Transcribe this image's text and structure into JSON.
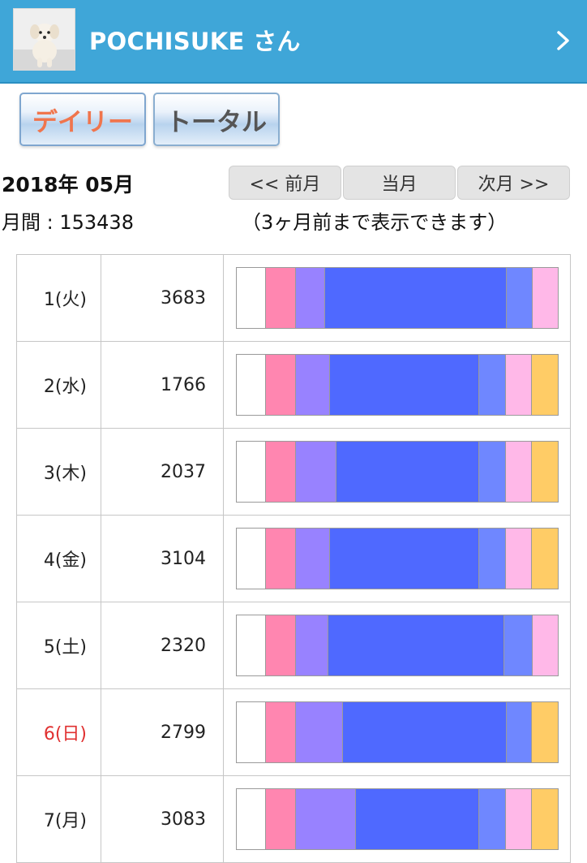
{
  "header": {
    "title": "POCHISUKE さん",
    "avatar_alt": "puppy-photo"
  },
  "tabs": {
    "daily": "デイリー",
    "total": "トータル",
    "active": "daily"
  },
  "summary": {
    "month": "2018年 05月",
    "monthly_total": "月間 : 153438"
  },
  "nav": {
    "prev": "<< 前月",
    "current": "当月",
    "next": "次月 >>",
    "note": "（3ヶ月前まで表示できます）"
  },
  "colors": {
    "header": "#3fa6d8",
    "white": "#ffffff",
    "pink": "#ff86b0",
    "lavender": "#9882ff",
    "blue": "#4f69ff",
    "periwinkle": "#6f87ff",
    "light_pink": "#ffb8e8",
    "yellow": "#ffcc66",
    "sunday_text": "#e03030"
  },
  "days": [
    {
      "date": "1(火)",
      "count": "3683",
      "sunday": false,
      "segments": [
        [
          "white",
          0.092
        ],
        [
          "pink",
          0.092
        ],
        [
          "lavender",
          0.092
        ],
        [
          "blue",
          0.565
        ],
        [
          "periwinkle",
          0.08
        ],
        [
          "light_pink",
          0.079
        ]
      ]
    },
    {
      "date": "2(水)",
      "count": "1766",
      "sunday": false,
      "segments": [
        [
          "white",
          0.092
        ],
        [
          "pink",
          0.092
        ],
        [
          "lavender",
          0.107
        ],
        [
          "blue",
          0.465
        ],
        [
          "periwinkle",
          0.082
        ],
        [
          "light_pink",
          0.082
        ],
        [
          "yellow",
          0.08
        ]
      ]
    },
    {
      "date": "3(木)",
      "count": "2037",
      "sunday": false,
      "segments": [
        [
          "white",
          0.092
        ],
        [
          "pink",
          0.092
        ],
        [
          "lavender",
          0.127
        ],
        [
          "blue",
          0.445
        ],
        [
          "periwinkle",
          0.082
        ],
        [
          "light_pink",
          0.082
        ],
        [
          "yellow",
          0.08
        ]
      ]
    },
    {
      "date": "4(金)",
      "count": "3104",
      "sunday": false,
      "segments": [
        [
          "white",
          0.092
        ],
        [
          "pink",
          0.092
        ],
        [
          "lavender",
          0.107
        ],
        [
          "blue",
          0.465
        ],
        [
          "periwinkle",
          0.082
        ],
        [
          "light_pink",
          0.082
        ],
        [
          "yellow",
          0.08
        ]
      ]
    },
    {
      "date": "5(土)",
      "count": "2320",
      "sunday": false,
      "segments": [
        [
          "white",
          0.092
        ],
        [
          "pink",
          0.092
        ],
        [
          "lavender",
          0.102
        ],
        [
          "blue",
          0.548
        ],
        [
          "periwinkle",
          0.087
        ],
        [
          "light_pink",
          0.079
        ]
      ]
    },
    {
      "date": "6(日)",
      "count": "2799",
      "sunday": true,
      "segments": [
        [
          "white",
          0.092
        ],
        [
          "pink",
          0.092
        ],
        [
          "lavender",
          0.147
        ],
        [
          "blue",
          0.51
        ],
        [
          "periwinkle",
          0.079
        ],
        [
          "yellow",
          0.08
        ]
      ]
    },
    {
      "date": "7(月)",
      "count": "3083",
      "sunday": false,
      "segments": [
        [
          "white",
          0.092
        ],
        [
          "pink",
          0.092
        ],
        [
          "lavender",
          0.187
        ],
        [
          "blue",
          0.385
        ],
        [
          "periwinkle",
          0.082
        ],
        [
          "light_pink",
          0.082
        ],
        [
          "yellow",
          0.08
        ]
      ]
    }
  ]
}
